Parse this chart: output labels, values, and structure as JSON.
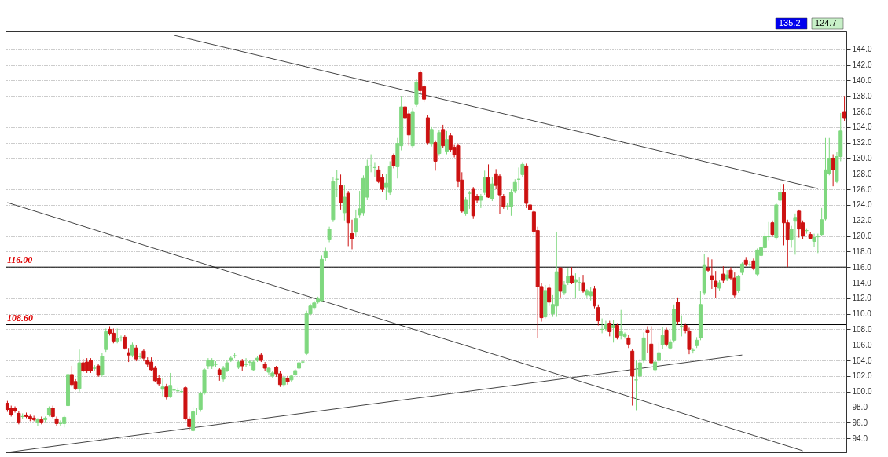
{
  "chart_data": {
    "type": "candlestick",
    "categories": [
      null,
      null,
      null,
      null,
      null,
      null,
      null,
      null,
      null,
      null,
      null,
      null,
      null,
      null,
      null,
      null,
      null,
      null,
      null,
      null,
      null,
      null,
      null,
      null,
      null,
      null,
      null,
      null,
      null,
      null,
      null,
      null,
      null,
      null,
      null,
      null,
      null,
      null,
      null,
      null,
      null,
      null,
      null,
      null,
      null,
      null,
      null,
      null,
      null,
      null,
      null,
      null,
      null,
      null,
      null,
      null,
      null,
      null,
      null,
      null,
      null,
      null,
      null,
      null,
      null,
      null,
      null,
      null,
      null,
      null,
      null,
      null,
      null,
      null,
      null,
      null,
      null,
      null,
      null,
      null,
      null,
      null,
      null,
      null,
      null,
      null,
      null,
      null,
      null,
      null,
      null,
      null,
      null,
      null,
      null,
      null,
      null,
      null,
      null,
      null,
      null,
      null,
      null,
      null,
      null,
      null,
      null,
      null,
      null,
      null,
      null,
      null,
      null,
      null,
      null,
      null,
      null,
      null,
      null,
      null,
      null,
      null,
      null,
      null,
      null,
      null,
      null,
      null,
      null,
      null,
      null,
      null,
      null,
      null,
      null,
      null,
      null,
      null,
      null,
      null,
      null,
      null,
      null,
      null,
      null,
      null,
      null,
      null,
      null,
      null,
      null,
      null,
      null,
      null,
      null,
      null,
      null,
      null,
      null,
      null,
      null,
      null,
      null,
      null,
      null,
      null,
      null,
      null,
      null,
      null,
      null,
      null,
      null,
      null,
      null,
      null,
      null,
      null,
      null,
      null,
      null,
      null,
      null,
      null,
      null,
      null,
      null,
      null,
      null,
      null,
      null,
      null,
      null,
      null,
      null,
      null,
      null,
      null,
      null,
      null,
      null,
      null,
      null,
      null,
      null,
      null,
      null,
      null,
      null,
      null,
      null,
      null,
      null,
      null,
      null,
      null,
      null,
      null,
      null,
      null,
      null,
      null
    ],
    "colors": [
      "#cc1111",
      "#cc1111",
      "#cc1111",
      "#cc1111",
      "#7fd87f",
      "#cc1111",
      "#cc1111",
      "#cc1111",
      "#7fd87f",
      "#cc1111",
      "#7fd87f",
      "#7fd87f",
      "#cc1111",
      "#cc1111",
      "#7fd87f",
      "#7fd87f",
      "#7fd87f",
      "#cc1111",
      "#cc1111",
      "#7fd87f",
      "#cc1111",
      "#cc1111",
      "#cc1111",
      "#7fd87f",
      "#cc1111",
      "#7fd87f",
      "#7fd87f",
      "#cc1111",
      "#cc1111",
      "#7fd87f",
      "#7fd87f",
      "#cc1111",
      "#cc1111",
      "#7fd87f",
      "#cc1111",
      "#7fd87f",
      "#cc1111",
      "#cc1111",
      "#cc1111",
      "#cc1111",
      "#cc1111",
      "#7fd87f",
      "#cc1111",
      "#7fd87f",
      "#7fd87f",
      "#7fd87f",
      "#7fd87f",
      "#cc1111",
      "#cc1111",
      "#7fd87f",
      "#7fd87f",
      "#7fd87f",
      "#7fd87f",
      "#7fd87f",
      "#7fd87f",
      "#7fd87f",
      "#cc1111",
      "#7fd87f",
      "#7fd87f",
      "#7fd87f",
      "#7fd87f",
      "#7fd87f",
      "#cc1111",
      "#7fd87f",
      "#7fd87f",
      "#7fd87f",
      "#7fd87f",
      "#cc1111",
      "#cc1111",
      "#7fd87f",
      "#7fd87f",
      "#cc1111",
      "#cc1111",
      "#7fd87f",
      "#cc1111",
      "#7fd87f",
      "#7fd87f",
      "#7fd87f",
      "#7fd87f",
      "#7fd87f",
      "#7fd87f",
      "#7fd87f",
      "#7fd87f",
      "#7fd87f",
      "#7fd87f",
      "#7fd87f",
      "#7fd87f",
      "#7fd87f",
      "#cc1111",
      "#7fd87f",
      "#cc1111",
      "#cc1111",
      "#7fd87f",
      "#7fd87f",
      "#7fd87f",
      "#7fd87f",
      "#7fd87f",
      "#7fd87f",
      "#cc1111",
      "#cc1111",
      "#7fd87f",
      "#7fd87f",
      "#cc1111",
      "#7fd87f",
      "#7fd87f",
      "#cc1111",
      "#cc1111",
      "#7fd87f",
      "#7fd87f",
      "#cc1111",
      "#cc1111",
      "#cc1111",
      "#7fd87f",
      "#cc1111",
      "#7fd87f",
      "#cc1111",
      "#7fd87f",
      "#cc1111",
      "#cc1111",
      "#cc1111",
      "#cc1111",
      "#7fd87f",
      "#7fd87f",
      "#cc1111",
      "#cc1111",
      "#7fd87f",
      "#7fd87f",
      "#cc1111",
      "#7fd87f",
      "#cc1111",
      "#cc1111",
      "#cc1111",
      "#7fd87f",
      "#7fd87f",
      "#7fd87f",
      "#7fd87f",
      "#7fd87f",
      "#cc1111",
      "#cc1111",
      "#cc1111",
      "#cc1111",
      "#cc1111",
      "#7fd87f",
      "#cc1111",
      "#7fd87f",
      "#7fd87f",
      "#cc1111",
      "#7fd87f",
      "#7fd87f",
      "#cc1111",
      "#7fd87f",
      "#7fd87f",
      "#cc1111",
      "#7fd87f",
      "#7fd87f",
      "#cc1111",
      "#cc1111",
      "#7fd87f",
      "#7fd87f",
      "#cc1111",
      "#7fd87f",
      "#cc1111",
      "#7fd87f",
      "#7fd87f",
      "#cc1111",
      "#cc1111",
      "#7fd87f",
      "#7fd87f",
      "#7fd87f",
      "#cc1111",
      "#cc1111",
      "#7fd87f",
      "#7fd87f",
      "#7fd87f",
      "#cc1111",
      "#7fd87f",
      "#7fd87f",
      "#cc1111",
      "#7fd87f",
      "#cc1111",
      "#cc1111",
      "#7fd87f",
      "#7fd87f",
      "#7fd87f",
      "#7fd87f",
      "#cc1111",
      "#cc1111",
      "#cc1111",
      "#7fd87f",
      "#cc1111",
      "#7fd87f",
      "#cc1111",
      "#cc1111",
      "#7fd87f",
      "#7fd87f",
      "#cc1111",
      "#7fd87f",
      "#cc1111",
      "#7fd87f",
      "#7fd87f",
      "#7fd87f",
      "#7fd87f",
      "#cc1111",
      "#7fd87f",
      "#7fd87f",
      "#cc1111",
      "#cc1111",
      "#7fd87f",
      "#7fd87f",
      "#cc1111",
      "#cc1111",
      "#7fd87f",
      "#cc1111",
      "#7fd87f",
      "#7fd87f",
      "#7fd87f",
      "#7fd87f",
      "#7fd87f",
      "#cc1111",
      "#7fd87f",
      "#7fd87f",
      "#cc1111"
    ],
    "ohlc": [
      [
        98.5,
        98.8,
        97.4,
        97.7
      ],
      [
        97.9,
        98.2,
        96.8,
        97.0
      ],
      [
        97.9,
        98.1,
        97.3,
        97.5
      ],
      [
        97.2,
        97.5,
        95.8,
        96.0
      ],
      [
        96.8,
        97.2,
        96.5,
        96.8
      ],
      [
        97.0,
        97.3,
        96.6,
        96.8
      ],
      [
        96.8,
        97.1,
        96.2,
        96.5
      ],
      [
        96.6,
        96.9,
        96.2,
        96.4
      ],
      [
        96.0,
        96.6,
        95.6,
        96.4
      ],
      [
        96.4,
        96.8,
        95.8,
        96.0
      ],
      [
        96.4,
        96.8,
        96.0,
        96.6
      ],
      [
        97.0,
        98.1,
        96.8,
        97.9
      ],
      [
        97.9,
        98.2,
        96.6,
        96.8
      ],
      [
        96.5,
        96.8,
        95.6,
        95.9
      ],
      [
        95.9,
        96.3,
        95.6,
        95.9
      ],
      [
        95.9,
        96.9,
        95.4,
        96.7
      ],
      [
        98.2,
        102.4,
        97.9,
        102.2
      ],
      [
        102.2,
        103.3,
        100.6,
        100.9
      ],
      [
        101.3,
        101.6,
        100.2,
        100.4
      ],
      [
        100.4,
        105.4,
        100.0,
        103.7
      ],
      [
        103.7,
        104.2,
        102.5,
        102.7
      ],
      [
        103.8,
        104.3,
        102.4,
        102.7
      ],
      [
        104.0,
        104.3,
        102.4,
        102.7
      ],
      [
        103.0,
        103.4,
        102.7,
        103.0
      ],
      [
        103.3,
        103.6,
        101.9,
        102.1
      ],
      [
        102.2,
        105.0,
        101.9,
        104.5
      ],
      [
        105.4,
        108.1,
        105.1,
        107.7
      ],
      [
        108.0,
        108.4,
        107.2,
        107.5
      ],
      [
        107.5,
        108.1,
        106.2,
        106.5
      ],
      [
        106.5,
        108.1,
        106.2,
        106.8
      ],
      [
        106.9,
        107.2,
        106.5,
        106.9
      ],
      [
        107.0,
        107.3,
        105.4,
        105.6
      ],
      [
        105.0,
        105.6,
        103.8,
        104.7
      ],
      [
        104.7,
        106.3,
        104.4,
        106.0
      ],
      [
        105.6,
        106.0,
        103.9,
        104.2
      ],
      [
        104.5,
        104.9,
        104.2,
        104.5
      ],
      [
        105.2,
        105.5,
        103.9,
        104.3
      ],
      [
        104.0,
        104.4,
        103.2,
        103.5
      ],
      [
        103.8,
        104.4,
        102.6,
        102.8
      ],
      [
        103.0,
        103.3,
        101.2,
        101.4
      ],
      [
        101.7,
        102.1,
        100.7,
        101.0
      ],
      [
        100.3,
        101.7,
        99.4,
        100.6
      ],
      [
        100.6,
        101.0,
        99.0,
        99.3
      ],
      [
        99.4,
        102.4,
        99.2,
        100.8
      ],
      [
        100.2,
        100.5,
        99.9,
        100.2
      ],
      [
        100.1,
        100.5,
        99.8,
        100.1
      ],
      [
        100.0,
        100.3,
        99.8,
        100.0
      ],
      [
        100.5,
        100.7,
        96.3,
        96.5
      ],
      [
        96.5,
        96.8,
        95.0,
        95.5
      ],
      [
        95.0,
        98.0,
        94.8,
        97.4
      ],
      [
        97.5,
        97.9,
        97.0,
        97.5
      ],
      [
        97.7,
        100.0,
        97.4,
        99.8
      ],
      [
        99.8,
        103.0,
        99.6,
        102.8
      ],
      [
        103.3,
        104.3,
        102.9,
        104.0
      ],
      [
        103.3,
        104.3,
        102.9,
        104.0
      ],
      [
        103.5,
        103.9,
        103.2,
        103.5
      ],
      [
        102.8,
        103.0,
        101.4,
        102.2
      ],
      [
        101.6,
        103.3,
        101.3,
        103.0
      ],
      [
        102.7,
        104.1,
        102.5,
        103.7
      ],
      [
        104.0,
        104.6,
        103.8,
        104.3
      ],
      [
        104.6,
        105.0,
        104.3,
        104.6
      ],
      [
        103.1,
        104.1,
        102.9,
        103.8
      ],
      [
        103.9,
        104.2,
        102.7,
        103.3
      ],
      [
        103.5,
        104.3,
        103.2,
        103.5
      ],
      [
        103.8,
        104.0,
        103.3,
        103.8
      ],
      [
        102.8,
        104.1,
        102.6,
        103.8
      ],
      [
        104.0,
        104.6,
        103.8,
        104.3
      ],
      [
        104.7,
        105.0,
        103.8,
        104.0
      ],
      [
        103.5,
        103.8,
        102.6,
        103.0
      ],
      [
        102.5,
        103.2,
        102.2,
        103.0
      ],
      [
        102.0,
        102.6,
        101.8,
        102.4
      ],
      [
        103.1,
        103.3,
        101.9,
        102.3
      ],
      [
        102.3,
        102.6,
        100.6,
        100.9
      ],
      [
        100.9,
        102.1,
        100.6,
        101.8
      ],
      [
        101.7,
        102.0,
        100.9,
        101.3
      ],
      [
        101.5,
        102.2,
        101.2,
        102.0
      ],
      [
        102.2,
        102.9,
        101.9,
        102.7
      ],
      [
        103.0,
        103.9,
        102.8,
        103.7
      ],
      [
        103.8,
        104.0,
        103.5,
        103.8
      ],
      [
        104.9,
        110.4,
        104.7,
        110.0
      ],
      [
        110.0,
        111.3,
        109.8,
        111.0
      ],
      [
        110.8,
        111.7,
        110.5,
        111.4
      ],
      [
        111.5,
        112.2,
        111.3,
        111.9
      ],
      [
        111.7,
        117.5,
        111.5,
        117.0
      ],
      [
        117.2,
        118.5,
        116.8,
        118.0
      ],
      [
        119.5,
        121.2,
        119.2,
        120.9
      ],
      [
        122.1,
        127.6,
        121.8,
        127.0
      ],
      [
        127.3,
        128.5,
        125.0,
        127.3
      ],
      [
        126.5,
        127.9,
        123.4,
        124.3
      ],
      [
        123.0,
        126.6,
        122.0,
        125.0
      ],
      [
        125.5,
        125.8,
        118.7,
        121.7
      ],
      [
        120.3,
        122.1,
        118.3,
        119.7
      ],
      [
        120.5,
        123.4,
        120.0,
        122.2
      ],
      [
        122.7,
        125.8,
        122.4,
        123.5
      ],
      [
        123.0,
        127.8,
        122.6,
        127.4
      ],
      [
        125.0,
        129.8,
        124.6,
        129.0
      ],
      [
        129.0,
        130.5,
        128.2,
        129.0
      ],
      [
        128.8,
        129.5,
        127.6,
        128.8
      ],
      [
        128.5,
        129.0,
        126.8,
        127.0
      ],
      [
        127.5,
        128.0,
        125.7,
        126.0
      ],
      [
        126.3,
        128.0,
        124.6,
        126.8
      ],
      [
        125.6,
        129.6,
        125.3,
        128.9
      ],
      [
        130.3,
        130.6,
        128.7,
        129.0
      ],
      [
        128.9,
        132.6,
        127.4,
        131.9
      ],
      [
        131.6,
        138.0,
        131.0,
        136.6
      ],
      [
        136.6,
        138.0,
        135.0,
        135.2
      ],
      [
        135.7,
        136.2,
        131.6,
        133.0
      ],
      [
        131.6,
        136.5,
        131.3,
        136.0
      ],
      [
        136.9,
        140.2,
        136.6,
        139.8
      ],
      [
        141.0,
        141.3,
        138.4,
        138.7
      ],
      [
        139.2,
        139.5,
        137.2,
        137.6
      ],
      [
        135.2,
        135.5,
        131.7,
        132.0
      ],
      [
        131.8,
        134.0,
        131.5,
        133.7
      ],
      [
        132.0,
        132.3,
        128.4,
        129.6
      ],
      [
        130.6,
        133.6,
        130.3,
        133.3
      ],
      [
        133.7,
        134.3,
        131.3,
        131.6
      ],
      [
        130.9,
        133.5,
        130.5,
        132.4
      ],
      [
        132.9,
        133.2,
        130.8,
        131.1
      ],
      [
        131.4,
        131.7,
        130.1,
        130.4
      ],
      [
        131.6,
        131.9,
        126.3,
        127.0
      ],
      [
        127.2,
        128.2,
        123.0,
        123.2
      ],
      [
        122.9,
        125.0,
        122.6,
        124.6
      ],
      [
        125.5,
        125.8,
        123.5,
        125.5
      ],
      [
        126.0,
        126.3,
        122.2,
        122.6
      ],
      [
        125.1,
        125.4,
        124.2,
        124.6
      ],
      [
        124.6,
        125.4,
        123.6,
        125.1
      ],
      [
        125.6,
        128.4,
        125.3,
        127.5
      ],
      [
        127.5,
        129.2,
        124.9,
        125.0
      ],
      [
        124.8,
        127.6,
        124.5,
        126.7
      ],
      [
        128.0,
        128.6,
        126.0,
        126.5
      ],
      [
        127.7,
        128.0,
        122.8,
        125.3
      ],
      [
        125.1,
        125.4,
        123.5,
        123.8
      ],
      [
        123.8,
        124.3,
        123.4,
        123.8
      ],
      [
        123.8,
        126.0,
        122.6,
        125.6
      ],
      [
        125.8,
        127.3,
        125.5,
        126.9
      ],
      [
        127.3,
        128.8,
        126.0,
        127.3
      ],
      [
        127.9,
        129.5,
        127.6,
        129.2
      ],
      [
        129.0,
        129.3,
        123.6,
        124.2
      ],
      [
        124.0,
        124.6,
        123.1,
        123.4
      ],
      [
        123.1,
        123.4,
        120.2,
        120.6
      ],
      [
        120.7,
        121.2,
        106.9,
        113.5
      ],
      [
        113.5,
        114.0,
        109.0,
        109.5
      ],
      [
        109.6,
        113.7,
        109.4,
        113.0
      ],
      [
        113.3,
        113.8,
        111.0,
        111.5
      ],
      [
        110.0,
        112.4,
        109.6,
        111.2
      ],
      [
        111.0,
        120.5,
        109.6,
        115.4
      ],
      [
        115.9,
        116.0,
        112.1,
        112.9
      ],
      [
        112.7,
        114.2,
        112.4,
        113.7
      ],
      [
        114.0,
        115.9,
        113.7,
        114.8
      ],
      [
        114.9,
        116.0,
        113.8,
        114.0
      ],
      [
        114.1,
        115.2,
        112.0,
        114.4
      ],
      [
        114.0,
        114.7,
        113.0,
        114.0
      ],
      [
        114.0,
        115.0,
        112.7,
        112.9
      ],
      [
        112.4,
        113.2,
        112.1,
        113.0
      ],
      [
        112.3,
        113.4,
        111.7,
        112.8
      ],
      [
        113.2,
        113.6,
        110.7,
        111.0
      ],
      [
        110.8,
        111.2,
        108.5,
        109.1
      ],
      [
        108.0,
        109.4,
        107.5,
        108.0
      ],
      [
        108.1,
        109.1,
        107.8,
        108.7
      ],
      [
        108.8,
        109.1,
        107.1,
        107.7
      ],
      [
        108.2,
        109.2,
        106.3,
        108.5
      ],
      [
        108.5,
        108.8,
        106.7,
        107.0
      ],
      [
        107.2,
        110.5,
        106.7,
        107.7
      ],
      [
        107.1,
        107.6,
        106.8,
        107.4
      ],
      [
        106.9,
        107.3,
        105.6,
        106.1
      ],
      [
        105.2,
        105.5,
        98.2,
        102.0
      ],
      [
        101.5,
        104.0,
        97.6,
        101.5
      ],
      [
        102.0,
        104.2,
        101.6,
        103.7
      ],
      [
        104.0,
        107.6,
        103.7,
        106.9
      ],
      [
        107.9,
        108.4,
        105.0,
        107.6
      ],
      [
        106.1,
        108.4,
        103.5,
        103.7
      ],
      [
        102.8,
        104.0,
        102.4,
        103.8
      ],
      [
        104.0,
        106.3,
        103.7,
        105.0
      ],
      [
        106.0,
        108.3,
        105.5,
        107.2
      ],
      [
        107.9,
        108.2,
        105.8,
        106.1
      ],
      [
        105.6,
        106.7,
        105.4,
        106.4
      ],
      [
        106.6,
        111.2,
        106.3,
        110.6
      ],
      [
        111.5,
        112.1,
        108.6,
        109.0
      ],
      [
        108.4,
        109.8,
        107.1,
        108.4
      ],
      [
        108.5,
        108.8,
        107.5,
        107.8
      ],
      [
        107.8,
        108.2,
        104.8,
        105.4
      ],
      [
        105.3,
        105.6,
        104.9,
        105.3
      ],
      [
        105.9,
        107.0,
        105.6,
        106.6
      ],
      [
        106.9,
        112.9,
        106.6,
        111.2
      ],
      [
        112.7,
        117.7,
        112.4,
        116.3
      ],
      [
        115.9,
        117.3,
        115.4,
        115.6
      ],
      [
        114.9,
        117.0,
        113.2,
        114.4
      ],
      [
        114.2,
        115.5,
        112.0,
        113.5
      ],
      [
        113.3,
        114.3,
        113.0,
        114.0
      ],
      [
        115.1,
        116.1,
        113.9,
        114.3
      ],
      [
        114.5,
        115.6,
        114.2,
        115.0
      ],
      [
        115.6,
        116.0,
        114.3,
        114.6
      ],
      [
        114.6,
        115.3,
        112.1,
        112.4
      ],
      [
        113.0,
        115.0,
        112.7,
        114.8
      ],
      [
        115.3,
        116.6,
        115.0,
        116.4
      ],
      [
        116.9,
        117.3,
        116.1,
        116.4
      ],
      [
        116.3,
        116.7,
        116.0,
        116.3
      ],
      [
        116.8,
        117.1,
        115.6,
        115.9
      ],
      [
        115.1,
        118.4,
        114.8,
        118.2
      ],
      [
        117.5,
        118.7,
        117.2,
        118.5
      ],
      [
        118.5,
        120.4,
        118.2,
        120.0
      ],
      [
        119.9,
        121.8,
        119.4,
        119.9
      ],
      [
        121.7,
        122.0,
        119.9,
        120.2
      ],
      [
        119.8,
        124.3,
        119.5,
        124.0
      ],
      [
        124.6,
        126.7,
        124.3,
        125.6
      ],
      [
        125.6,
        126.7,
        118.8,
        121.7
      ],
      [
        121.7,
        122.1,
        116.0,
        119.5
      ],
      [
        119.5,
        121.3,
        118.5,
        120.9
      ],
      [
        121.9,
        122.9,
        117.6,
        122.4
      ],
      [
        123.2,
        123.4,
        119.8,
        120.9
      ],
      [
        121.7,
        122.0,
        119.6,
        120.0
      ],
      [
        120.7,
        121.0,
        120.3,
        120.7
      ],
      [
        120.2,
        120.5,
        119.6,
        119.7
      ],
      [
        119.3,
        120.3,
        118.6,
        119.8
      ],
      [
        119.9,
        120.3,
        117.8,
        119.9
      ],
      [
        120.2,
        123.6,
        120.0,
        122.1
      ],
      [
        122.2,
        132.6,
        122.0,
        128.5
      ],
      [
        128.0,
        132.6,
        127.8,
        130.0
      ],
      [
        130.0,
        130.5,
        126.4,
        128.5
      ],
      [
        127.0,
        130.8,
        126.8,
        130.2
      ],
      [
        130.2,
        135.8,
        129.6,
        133.5
      ],
      [
        136.0,
        138.0,
        134.8,
        135.2
      ]
    ],
    "series": [
      {
        "type": "line",
        "color": "#444444",
        "values": [
          null,
          null,
          null,
          null,
          null,
          null,
          null,
          null,
          null,
          null,
          null,
          null,
          null,
          null,
          null,
          null,
          null,
          null,
          null,
          null,
          null,
          null,
          null,
          null,
          null,
          null,
          null,
          null,
          null,
          null,
          null,
          null,
          null,
          null,
          null,
          null,
          null,
          null,
          null,
          null,
          null,
          null,
          null,
          null,
          145.8,
          null,
          null,
          null,
          null,
          null,
          null,
          null,
          null,
          null,
          null,
          null,
          null,
          null,
          null,
          null,
          null,
          null,
          null,
          null,
          null,
          null,
          null,
          null,
          null,
          null,
          null,
          null,
          null,
          null,
          null,
          null,
          null,
          null,
          null,
          null,
          null,
          null,
          null,
          null,
          null,
          null,
          null,
          null,
          null,
          null,
          null,
          null,
          null,
          null,
          null,
          null,
          null,
          null,
          null,
          null,
          null,
          null,
          null,
          null,
          null,
          null,
          null,
          null,
          null,
          null,
          null,
          null,
          null,
          null,
          null,
          null,
          null,
          null,
          null,
          null,
          null,
          null,
          null,
          null,
          null,
          null,
          null,
          null,
          null,
          null,
          null,
          null,
          null,
          null,
          null,
          null,
          null,
          null,
          null,
          null,
          null,
          null,
          null,
          null,
          null,
          null,
          null,
          null,
          null,
          null,
          null,
          null,
          null,
          null,
          null,
          null,
          null,
          null,
          null,
          null,
          null,
          null,
          null,
          null,
          null,
          null,
          null,
          null,
          null,
          null,
          null,
          null,
          null,
          null,
          null,
          null,
          null,
          null,
          null,
          null,
          null,
          null,
          null,
          null,
          null,
          null,
          null,
          null,
          null,
          null,
          null,
          null,
          null,
          null,
          null,
          null,
          null,
          null,
          null,
          null,
          null,
          null,
          null,
          null,
          null,
          null,
          null,
          null,
          null,
          null,
          null,
          null,
          null,
          null,
          126.1,
          null,
          null,
          null,
          null,
          null,
          null,
          null
        ]
      },
      {
        "type": "line",
        "color": "#444444",
        "values": [
          124.3,
          null,
          null,
          null,
          null,
          null,
          null,
          null,
          null,
          null,
          null,
          null,
          null,
          null,
          null,
          null,
          null,
          null,
          null,
          null,
          null,
          null,
          null,
          null,
          null,
          null,
          null,
          null,
          null,
          null,
          null,
          null,
          null,
          null,
          null,
          null,
          null,
          null,
          null,
          null,
          null,
          null,
          null,
          null,
          null,
          null,
          null,
          null,
          null,
          null,
          null,
          null,
          null,
          null,
          null,
          null,
          null,
          null,
          null,
          null,
          null,
          null,
          null,
          null,
          null,
          null,
          null,
          null,
          null,
          null,
          null,
          null,
          null,
          null,
          null,
          null,
          null,
          null,
          null,
          null,
          null,
          null,
          null,
          null,
          null,
          null,
          null,
          null,
          null,
          null,
          null,
          null,
          null,
          null,
          null,
          null,
          null,
          null,
          null,
          null,
          null,
          null,
          null,
          null,
          null,
          null,
          null,
          null,
          null,
          null,
          null,
          null,
          null,
          null,
          null,
          null,
          null,
          null,
          null,
          null,
          null,
          null,
          null,
          null,
          null,
          null,
          null,
          null,
          null,
          null,
          null,
          null,
          null,
          null,
          null,
          null,
          null,
          null,
          null,
          null,
          null,
          null,
          null,
          null,
          null,
          null,
          null,
          null,
          null,
          null,
          null,
          null,
          null,
          null,
          null,
          null,
          null,
          null,
          null,
          null,
          null,
          null,
          null,
          null,
          null,
          null,
          null,
          null,
          null,
          null,
          null,
          null,
          null,
          null,
          null,
          null,
          null,
          null,
          null,
          null,
          null,
          null,
          null,
          null,
          null,
          null,
          null,
          null,
          null,
          null,
          null,
          null,
          null,
          null,
          null,
          null,
          null,
          null,
          null,
          null,
          null,
          null,
          null,
          null,
          null,
          null,
          null,
          null,
          null,
          null,
          92.4,
          null,
          null,
          null,
          null,
          null,
          null,
          null,
          null,
          null,
          null,
          null
        ]
      },
      {
        "type": "line",
        "color": "#444444",
        "values": [
          92.2,
          null,
          null,
          null,
          null,
          null,
          null,
          null,
          null,
          null,
          null,
          null,
          null,
          null,
          null,
          null,
          null,
          null,
          null,
          null,
          null,
          null,
          null,
          null,
          null,
          null,
          null,
          null,
          null,
          null,
          null,
          null,
          null,
          null,
          null,
          null,
          null,
          null,
          null,
          null,
          null,
          null,
          null,
          null,
          null,
          null,
          null,
          null,
          null,
          null,
          null,
          null,
          null,
          null,
          null,
          null,
          null,
          null,
          null,
          null,
          null,
          null,
          null,
          null,
          null,
          null,
          null,
          null,
          null,
          null,
          null,
          null,
          null,
          null,
          null,
          null,
          null,
          null,
          null,
          null,
          null,
          null,
          null,
          null,
          null,
          null,
          null,
          null,
          null,
          null,
          null,
          null,
          null,
          null,
          null,
          null,
          null,
          null,
          null,
          null,
          null,
          null,
          null,
          null,
          null,
          null,
          null,
          null,
          null,
          null,
          null,
          null,
          null,
          null,
          null,
          null,
          null,
          null,
          null,
          null,
          null,
          null,
          null,
          null,
          null,
          null,
          null,
          null,
          null,
          null,
          null,
          null,
          null,
          null,
          null,
          null,
          null,
          null,
          null,
          null,
          null,
          null,
          null,
          null,
          null,
          null,
          null,
          null,
          null,
          null,
          null,
          null,
          null,
          null,
          null,
          null,
          null,
          null,
          null,
          null,
          null,
          null,
          null,
          null,
          null,
          null,
          null,
          null,
          null,
          null,
          null,
          null,
          null,
          null,
          null,
          null,
          null,
          null,
          null,
          null,
          null,
          null,
          null,
          null,
          null,
          null,
          null,
          null,
          null,
          null,
          null,
          null,
          null,
          null,
          104.7,
          null,
          null,
          null,
          null,
          null,
          null,
          null,
          null,
          null,
          null,
          null,
          null,
          null,
          null,
          null,
          null,
          null,
          null,
          null,
          null,
          null,
          null,
          null,
          null,
          null,
          null,
          null
        ]
      }
    ],
    "ref_lines": [
      {
        "axis": "y",
        "value": 116.0,
        "label": "116.00",
        "color": "#000000"
      },
      {
        "axis": "y",
        "value": 108.6,
        "label": "108.60",
        "color": "#000000"
      }
    ],
    "annotations": [
      "135.2",
      "124.7"
    ],
    "ylim": [
      92.2,
      146.3
    ],
    "yticks": [
      {
        "value": 94,
        "label": "94.0"
      },
      {
        "value": 96,
        "label": "96.0"
      },
      {
        "value": 98,
        "label": "98.0"
      },
      {
        "value": 100,
        "label": "100.0"
      },
      {
        "value": 102,
        "label": "102.0"
      },
      {
        "value": 104,
        "label": "104.0"
      },
      {
        "value": 106,
        "label": "106.0"
      },
      {
        "value": 108,
        "label": "108.0"
      },
      {
        "value": 110,
        "label": "110.0"
      },
      {
        "value": 112,
        "label": "112.0"
      },
      {
        "value": 114,
        "label": "114.0"
      },
      {
        "value": 116,
        "label": "116.0"
      },
      {
        "value": 118,
        "label": "118.0"
      },
      {
        "value": 120,
        "label": "120.0"
      },
      {
        "value": 122,
        "label": "122.0"
      },
      {
        "value": 124,
        "label": "124.0"
      },
      {
        "value": 126,
        "label": "126.0"
      },
      {
        "value": 128,
        "label": "128.0"
      },
      {
        "value": 130,
        "label": "130.0"
      },
      {
        "value": 132,
        "label": "132.0"
      },
      {
        "value": 134,
        "label": "134.0"
      },
      {
        "value": 136,
        "label": "136.0"
      },
      {
        "value": 138,
        "label": "138.0"
      },
      {
        "value": 140,
        "label": "140.0"
      },
      {
        "value": 142,
        "label": "142.0"
      },
      {
        "value": 144,
        "label": "144.0"
      }
    ],
    "grid": "y",
    "tick_labels": "y"
  }
}
